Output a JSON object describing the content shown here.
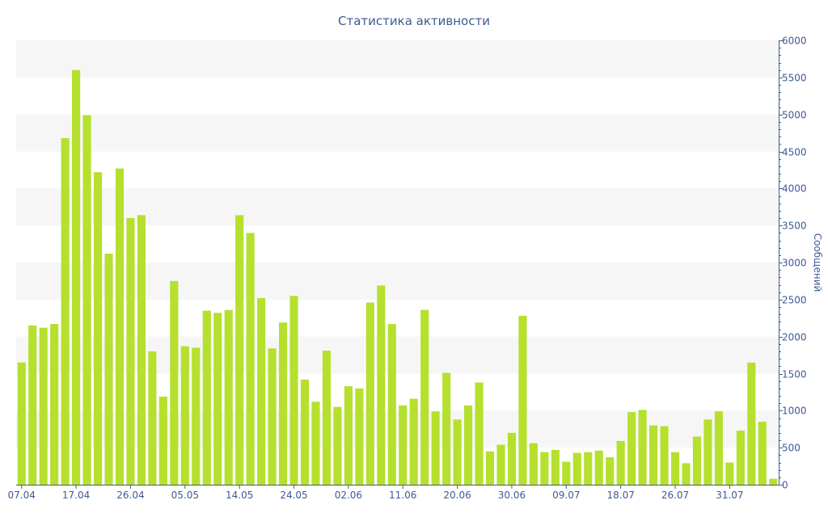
{
  "chart_data": {
    "type": "bar",
    "title": "Статистика активности",
    "xlabel": "",
    "ylabel": "Сообщений",
    "ylim": [
      0,
      6000
    ],
    "yticks": [
      0,
      500,
      1000,
      1500,
      2000,
      2500,
      3000,
      3500,
      4000,
      4500,
      5000,
      5500,
      6000
    ],
    "xtick_labels": [
      {
        "label": "07.04",
        "index": 0
      },
      {
        "label": "17.04",
        "index": 5
      },
      {
        "label": "26.04",
        "index": 10
      },
      {
        "label": "05.05",
        "index": 15
      },
      {
        "label": "14.05",
        "index": 20
      },
      {
        "label": "24.05",
        "index": 25
      },
      {
        "label": "02.06",
        "index": 30
      },
      {
        "label": "11.06",
        "index": 35
      },
      {
        "label": "20.06",
        "index": 40
      },
      {
        "label": "30.06",
        "index": 45
      },
      {
        "label": "09.07",
        "index": 50
      },
      {
        "label": "18.07",
        "index": 55
      },
      {
        "label": "26.07",
        "index": 60
      },
      {
        "label": "31.07",
        "index": 65
      }
    ],
    "values": [
      1650,
      2150,
      2120,
      2170,
      4680,
      5600,
      4990,
      4220,
      3120,
      4270,
      3600,
      3640,
      1800,
      1190,
      2750,
      1870,
      1850,
      2350,
      2320,
      2360,
      3640,
      3400,
      2520,
      1840,
      2190,
      2550,
      1420,
      1120,
      1810,
      1050,
      1330,
      1300,
      2460,
      2690,
      2170,
      1070,
      1160,
      2360,
      990,
      1510,
      880,
      1070,
      1380,
      450,
      540,
      700,
      2280,
      560,
      440,
      470,
      310,
      430,
      440,
      460,
      370,
      590,
      980,
      1010,
      800,
      790,
      440,
      290,
      650,
      880,
      990,
      300,
      730,
      1650,
      850,
      80
    ],
    "grid": true,
    "legend": "none",
    "bar_color": "#b5e02d",
    "axis_color": "#3e5a94",
    "band_color": "#f6f6f6"
  }
}
